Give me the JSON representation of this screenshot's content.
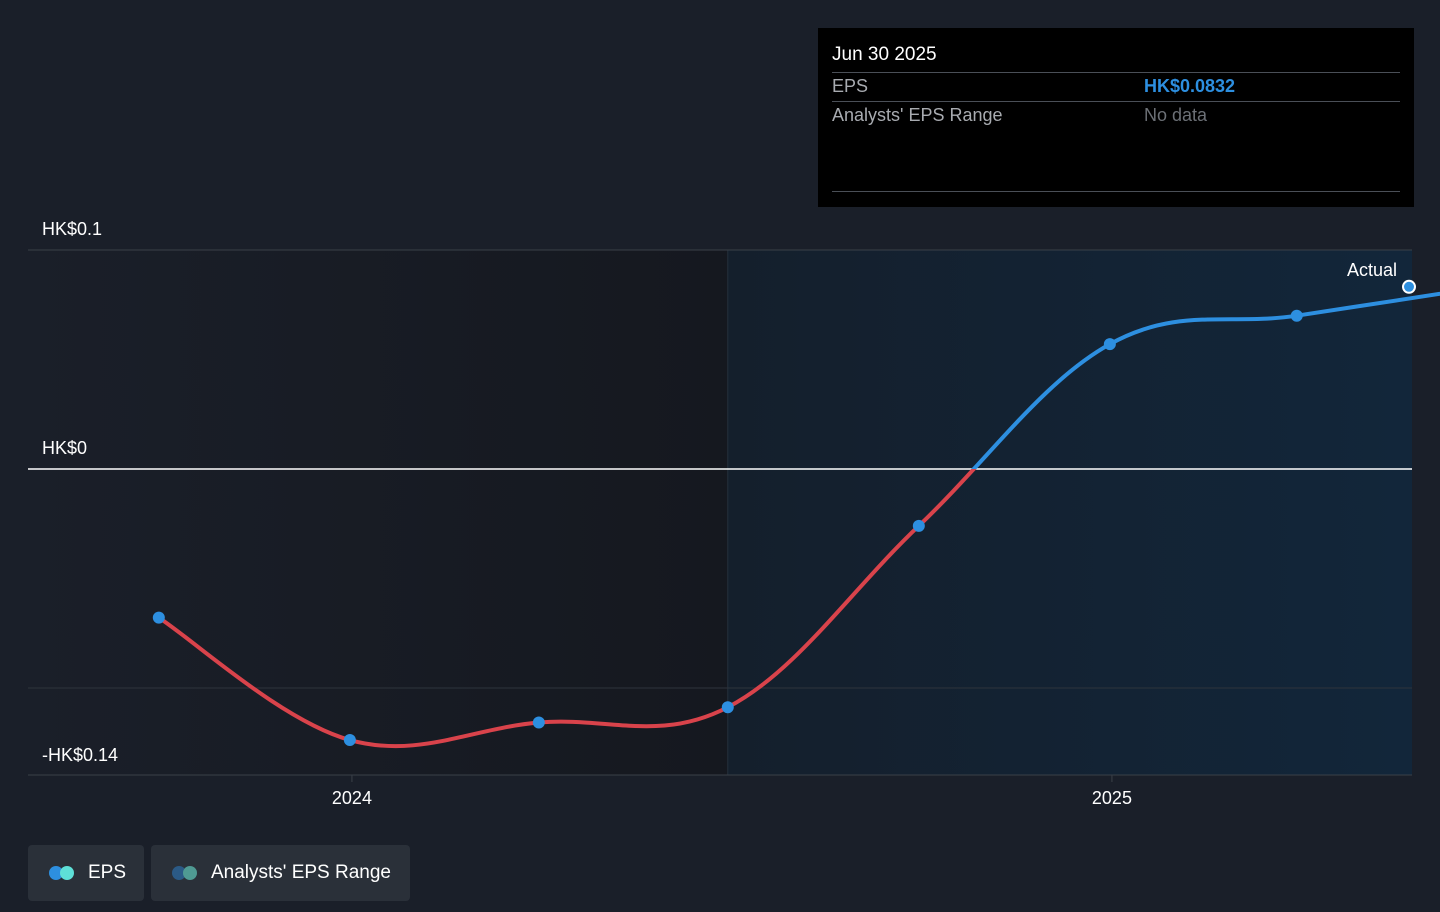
{
  "tooltip": {
    "date": "Jun 30 2025",
    "rows": [
      {
        "label": "EPS",
        "value": "HK$0.0832"
      },
      {
        "label": "Analysts' EPS Range",
        "value": "No data"
      }
    ]
  },
  "legend": [
    {
      "label": "EPS"
    },
    {
      "label": "Analysts' EPS Range"
    }
  ],
  "colors": {
    "negative": "#d9434b",
    "positive": "#2d8fe0",
    "point": "#2d8fe0",
    "background": "#1a1f29",
    "past_region": "#15181f",
    "future_region": "#12263a"
  },
  "chart_data": {
    "type": "line",
    "y_tick_labels": [
      "HK$0.1",
      "HK$0",
      "-HK$0.14"
    ],
    "x_tick_labels": [
      "2024",
      "2025"
    ],
    "ylim": [
      -0.14,
      0.1
    ],
    "series": [
      {
        "name": "EPS",
        "points": [
          {
            "x": "2023-09-30",
            "y": -0.068
          },
          {
            "x": "2023-12-31",
            "y": -0.124
          },
          {
            "x": "2024-03-31",
            "y": -0.116
          },
          {
            "x": "2024-06-30",
            "y": -0.109
          },
          {
            "x": "2024-09-30",
            "y": -0.026
          },
          {
            "x": "2024-12-31",
            "y": 0.057
          },
          {
            "x": "2025-03-31",
            "y": 0.07
          },
          {
            "x": "2025-06-30",
            "y": 0.0832
          }
        ]
      }
    ],
    "annotations": [
      {
        "label": "Actual",
        "x": "2025-06-30"
      }
    ],
    "forecast_start": "2024-06-30"
  }
}
